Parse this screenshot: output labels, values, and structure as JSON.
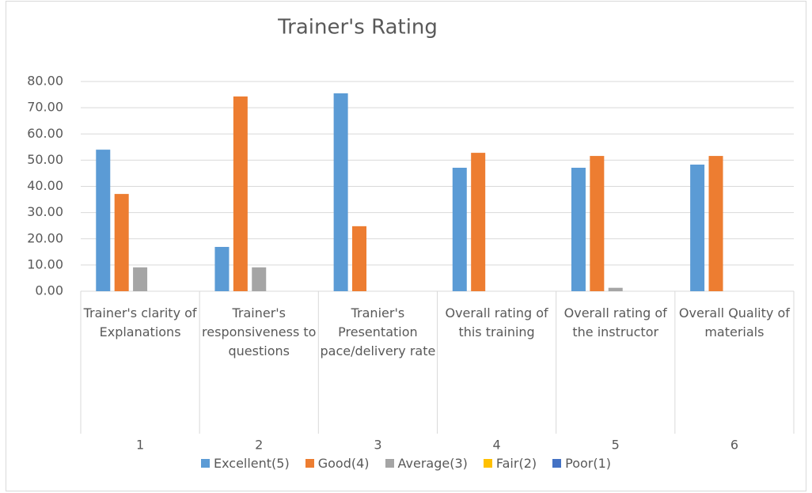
{
  "chart_data": {
    "type": "bar",
    "title": "Trainer's Rating",
    "categories": [
      "Trainer's clarity of Explanations",
      "Trainer's responsiveness to questions",
      "Tranier's Presentation pace/delivery rate",
      "Overall rating of this training",
      "Overall rating of the instructor",
      "Overall Quality of materials"
    ],
    "category_groups": [
      "1",
      "2",
      "3",
      "4",
      "5",
      "6"
    ],
    "series": [
      {
        "name": "Excellent(5)",
        "color": "#5b9bd5",
        "values": [
          54.0,
          16.9,
          75.5,
          47.1,
          47.1,
          48.3
        ]
      },
      {
        "name": "Good(4)",
        "color": "#ed7d31",
        "values": [
          37.1,
          74.3,
          24.8,
          52.8,
          51.6,
          51.6
        ]
      },
      {
        "name": "Average(3)",
        "color": "#a5a5a5",
        "values": [
          9.1,
          9.1,
          0,
          0,
          1.3,
          0
        ]
      },
      {
        "name": "Fair(2)",
        "color": "#ffc000",
        "values": [
          0,
          0,
          0,
          0,
          0,
          0
        ]
      },
      {
        "name": "Poor(1)",
        "color": "#4472c4",
        "values": [
          0,
          0,
          0,
          0,
          0,
          0
        ]
      }
    ],
    "ylim": [
      0,
      80
    ],
    "yticks": [
      {
        "value": 0,
        "label": "0.00"
      },
      {
        "value": 10,
        "label": "10.00"
      },
      {
        "value": 20,
        "label": "20.00"
      },
      {
        "value": 30,
        "label": "30.00"
      },
      {
        "value": 40,
        "label": "40.00"
      },
      {
        "value": 50,
        "label": "50.00"
      },
      {
        "value": 60,
        "label": "60.00"
      },
      {
        "value": 70,
        "label": "70.00"
      },
      {
        "value": 80,
        "label": "80.00"
      }
    ],
    "grid": true,
    "legend": "bottom"
  }
}
